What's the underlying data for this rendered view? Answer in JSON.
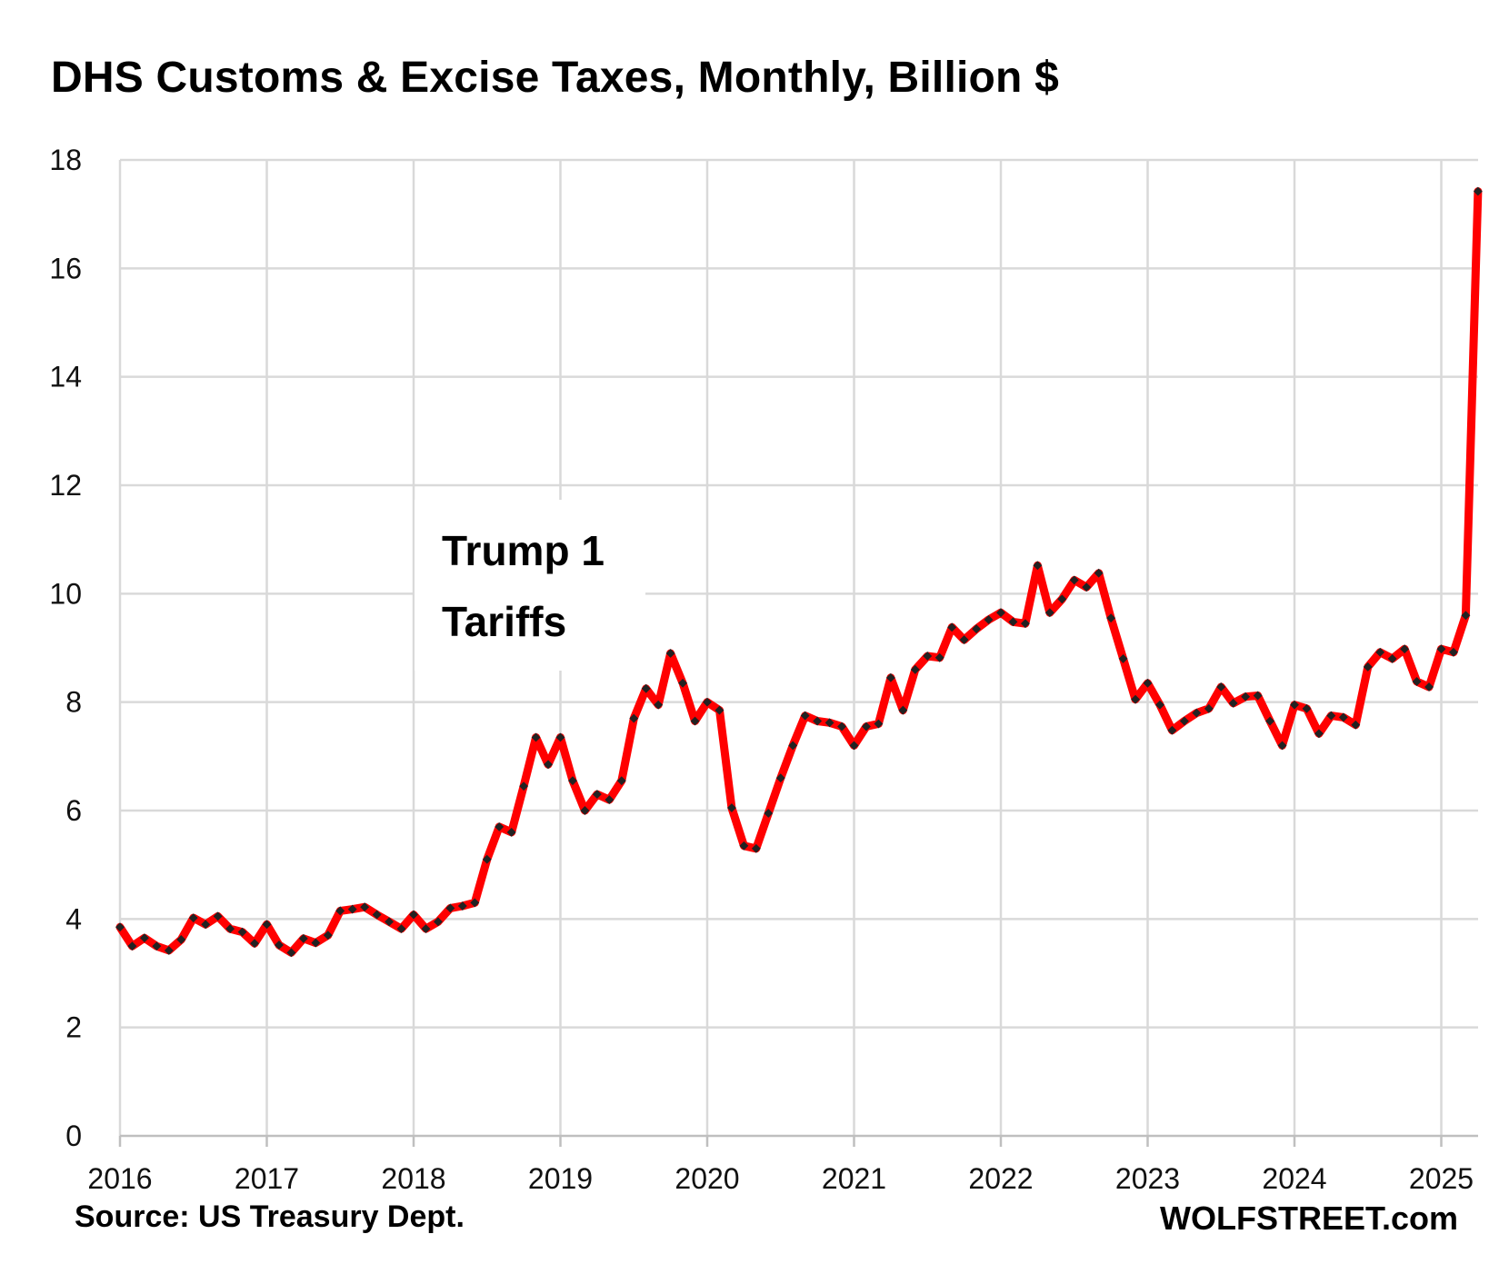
{
  "chart_data": {
    "type": "line",
    "title": "DHS Customs & Excise Taxes, Monthly, Billion $",
    "xlabel": "",
    "ylabel": "",
    "ylim": [
      0,
      18
    ],
    "yticks": [
      0,
      2,
      4,
      6,
      8,
      10,
      12,
      14,
      16,
      18
    ],
    "xticks": [
      "2016",
      "2017",
      "2018",
      "2019",
      "2020",
      "2021",
      "2022",
      "2023",
      "2024",
      "2025"
    ],
    "grid": true,
    "annotation": [
      "Trump 1",
      "Tariffs"
    ],
    "series": [
      {
        "name": "DHS Customs & Excise Taxes",
        "color": "#ff0000",
        "marker_color": "#222222",
        "start": "2016-01",
        "values": [
          3.85,
          3.5,
          3.65,
          3.5,
          3.42,
          3.62,
          4.02,
          3.9,
          4.05,
          3.82,
          3.76,
          3.55,
          3.9,
          3.52,
          3.38,
          3.64,
          3.56,
          3.7,
          4.15,
          4.18,
          4.22,
          4.08,
          3.95,
          3.82,
          4.08,
          3.82,
          3.95,
          4.2,
          4.24,
          4.3,
          5.1,
          5.7,
          5.6,
          6.45,
          7.35,
          6.85,
          7.35,
          6.55,
          6.0,
          6.3,
          6.2,
          6.55,
          7.7,
          8.25,
          7.95,
          8.9,
          8.35,
          7.65,
          8.0,
          7.85,
          6.05,
          5.35,
          5.3,
          5.95,
          6.6,
          7.2,
          7.75,
          7.65,
          7.62,
          7.55,
          7.2,
          7.55,
          7.6,
          8.45,
          7.85,
          8.6,
          8.85,
          8.82,
          9.38,
          9.15,
          9.35,
          9.52,
          9.65,
          9.48,
          9.45,
          10.52,
          9.65,
          9.9,
          10.25,
          10.12,
          10.38,
          9.55,
          8.8,
          8.05,
          8.35,
          7.95,
          7.48,
          7.65,
          7.8,
          7.88,
          8.28,
          7.98,
          8.1,
          8.12,
          7.65,
          7.2,
          7.95,
          7.88,
          7.42,
          7.75,
          7.72,
          7.58,
          8.65,
          8.92,
          8.8,
          8.98,
          8.38,
          8.28,
          8.98,
          8.92,
          9.6,
          17.42
        ]
      }
    ]
  },
  "footer": {
    "source": "Source: US Treasury Dept.",
    "brand": "WOLFSTREET.com"
  }
}
